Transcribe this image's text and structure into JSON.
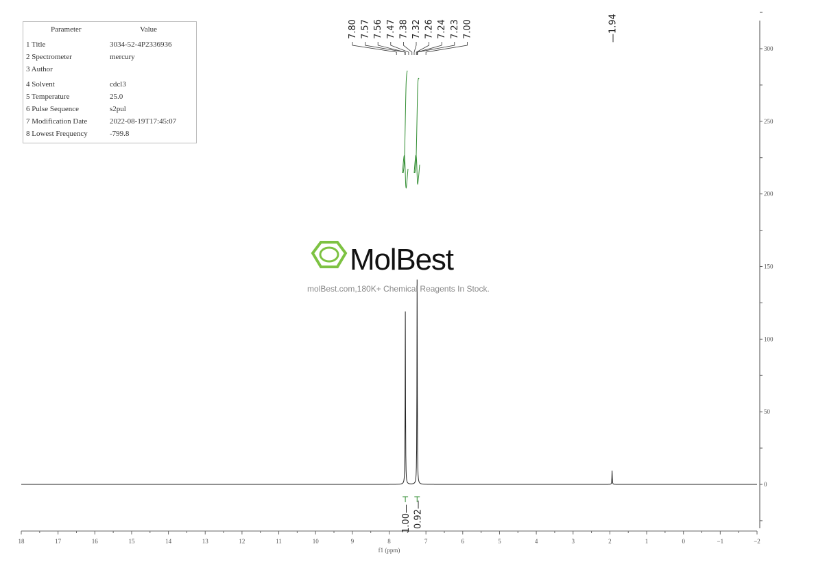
{
  "parameter_table": {
    "header": [
      "Parameter",
      "Value"
    ],
    "rows": [
      [
        "1 Title",
        "3034-52-4P2336936"
      ],
      [
        "2 Spectrometer",
        "mercury"
      ],
      [
        "3 Author",
        ""
      ],
      [
        "4 Solvent",
        "cdcl3"
      ],
      [
        "5 Temperature",
        "25.0"
      ],
      [
        "6 Pulse Sequence",
        "s2pul"
      ],
      [
        "7 Modification Date",
        "2022-08-19T17:45:07"
      ],
      [
        "8 Lowest Frequency",
        "-799.8"
      ]
    ]
  },
  "watermark": {
    "logo": "MolBest",
    "subtitle": "molBest.com,180K+ Chemical Reagents In Stock.",
    "color": "#7dc242"
  },
  "chart_data": {
    "type": "line",
    "xlabel": "f1 (ppm)",
    "xlim": [
      18,
      -2
    ],
    "ylim": [
      -30,
      320
    ],
    "x_ticks": [
      18,
      17,
      16,
      15,
      14,
      13,
      12,
      11,
      10,
      9,
      8,
      7,
      6,
      5,
      4,
      3,
      2,
      1,
      0,
      -1,
      -2
    ],
    "y_ticks": [
      0,
      50,
      100,
      150,
      200,
      250,
      300
    ],
    "peaks": [
      {
        "ppm": 7.56,
        "height": 119
      },
      {
        "ppm": 7.24,
        "height": 141
      },
      {
        "ppm": 1.94,
        "height": 9.5
      }
    ],
    "peak_labels_group": [
      "7.80",
      "7.57",
      "7.56",
      "7.47",
      "7.38",
      "7.32",
      "7.26",
      "7.24",
      "7.23",
      "7.00"
    ],
    "peak_labels_single": [
      "1.94"
    ],
    "integrals": [
      {
        "from": 7.62,
        "to": 7.5,
        "value": "1.00"
      },
      {
        "from": 7.3,
        "to": 7.18,
        "value": "0.92"
      }
    ],
    "line_color": "#222222",
    "integral_color": "#2e8b2e"
  }
}
